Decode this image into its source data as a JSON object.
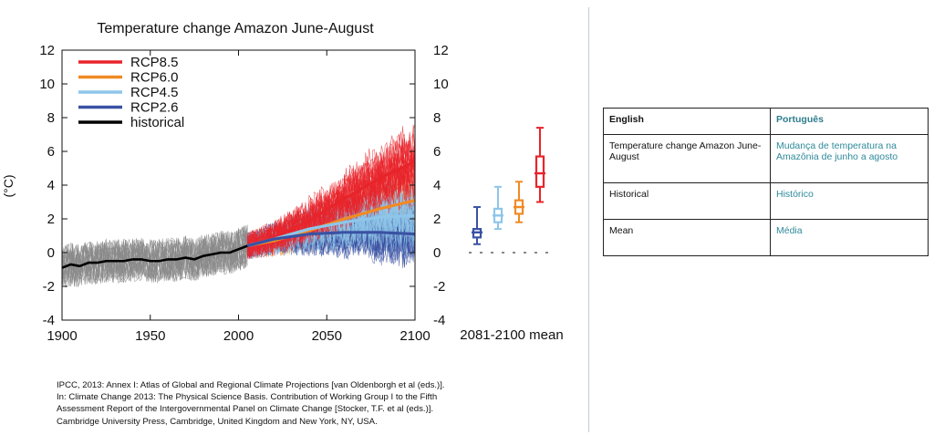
{
  "chart_data": {
    "type": "line",
    "title": "Temperature change Amazon June-August",
    "ylabel": "(°C)",
    "xlabel": "",
    "x_ticks": [
      1900,
      1950,
      2000,
      2050,
      2100
    ],
    "y_ticks": [
      -4,
      -2,
      0,
      2,
      4,
      6,
      8,
      10,
      12
    ],
    "xlim": [
      1900,
      2100
    ],
    "ylim": [
      -4,
      12
    ],
    "legend_position": "top-left",
    "series": [
      {
        "name": "RCP8.5",
        "color": "#e8242b",
        "x": [
          2005,
          2020,
          2040,
          2060,
          2080,
          2100
        ],
        "values": [
          0.4,
          0.9,
          1.9,
          3.2,
          4.4,
          5.4
        ]
      },
      {
        "name": "RCP6.0",
        "color": "#f08a24",
        "x": [
          2005,
          2020,
          2040,
          2060,
          2080,
          2100
        ],
        "values": [
          0.4,
          0.7,
          1.3,
          2.0,
          2.6,
          3.1
        ]
      },
      {
        "name": "RCP4.5",
        "color": "#8ec6ea",
        "x": [
          2005,
          2020,
          2040,
          2060,
          2080,
          2100
        ],
        "values": [
          0.4,
          0.8,
          1.4,
          1.8,
          2.1,
          2.2
        ]
      },
      {
        "name": "RCP2.6",
        "color": "#3a52a3",
        "x": [
          2005,
          2020,
          2040,
          2060,
          2080,
          2100
        ],
        "values": [
          0.4,
          0.8,
          1.1,
          1.2,
          1.2,
          1.1
        ]
      },
      {
        "name": "historical",
        "color": "#000000",
        "x": [
          1900,
          1905,
          1910,
          1915,
          1920,
          1925,
          1930,
          1935,
          1940,
          1945,
          1950,
          1955,
          1960,
          1965,
          1970,
          1975,
          1980,
          1985,
          1990,
          1995,
          2000,
          2005
        ],
        "values": [
          -0.9,
          -0.7,
          -0.8,
          -0.6,
          -0.6,
          -0.5,
          -0.5,
          -0.5,
          -0.4,
          -0.4,
          -0.5,
          -0.5,
          -0.4,
          -0.4,
          -0.3,
          -0.4,
          -0.2,
          -0.1,
          0.0,
          0.0,
          0.2,
          0.4
        ]
      }
    ],
    "mean_2081_2100": {
      "label": "2081-2100 mean",
      "boxes": [
        {
          "name": "RCP2.6",
          "color": "#3a52a3",
          "min": 0.5,
          "q1": 0.9,
          "median": 1.2,
          "q3": 1.4,
          "max": 2.7
        },
        {
          "name": "RCP4.5",
          "color": "#8ec6ea",
          "min": 1.4,
          "q1": 1.8,
          "median": 2.2,
          "q3": 2.6,
          "max": 3.9
        },
        {
          "name": "RCP6.0",
          "color": "#f08a24",
          "min": 1.8,
          "q1": 2.3,
          "median": 2.7,
          "q3": 3.1,
          "max": 4.2
        },
        {
          "name": "RCP8.5",
          "color": "#e8242b",
          "min": 3.0,
          "q1": 3.9,
          "median": 4.7,
          "q3": 5.7,
          "max": 7.4
        }
      ]
    }
  },
  "citation": {
    "line1": "IPCC, 2013: Annex I: Atlas of Global and Regional Climate Projections [van Oldenborgh et al (eds.)].",
    "line2": "In: Climate Change 2013: The Physical Science Basis. Contribution of Working Group I to the Fifth",
    "line3": "Assessment Report of the Intergovernmental Panel on Climate Change [Stocker, T.F. et al (eds.)].",
    "line4": "Cambridge University Press, Cambridge, United Kingdom and New York, NY, USA."
  },
  "glossary": {
    "header_en": "English",
    "header_pt": "Português",
    "rows": [
      {
        "en": "Temperature change Amazon June-August",
        "pt": "Mudança de temperatura na Amazônia de junho a agosto"
      },
      {
        "en": "Historical",
        "pt": "Histórico"
      },
      {
        "en": "Mean",
        "pt": "Média"
      }
    ]
  }
}
